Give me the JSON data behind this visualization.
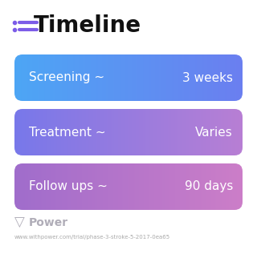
{
  "title": "Timeline",
  "background_color": "#ffffff",
  "rows": [
    {
      "left_label": "Screening ~",
      "right_label": "3 weeks",
      "color_left": "#4da6f5",
      "color_right": "#6b7ff0"
    },
    {
      "left_label": "Treatment ~",
      "right_label": "Varies",
      "color_left": "#7878ea",
      "color_right": "#b87fd4"
    },
    {
      "left_label": "Follow ups ~",
      "right_label": "90 days",
      "color_left": "#a06dcc",
      "color_right": "#cc7ec8"
    }
  ],
  "icon_color": "#7c5ce8",
  "footer_logo_color": "#b0adb8",
  "footer_text": "www.withpower.com/trial/phase-3-stroke-5-2017-0ea65",
  "footer_logo_text": "Power",
  "title_fontsize": 20,
  "label_fontsize": 11,
  "footer_fontsize": 5,
  "footer_logo_fontsize": 10
}
